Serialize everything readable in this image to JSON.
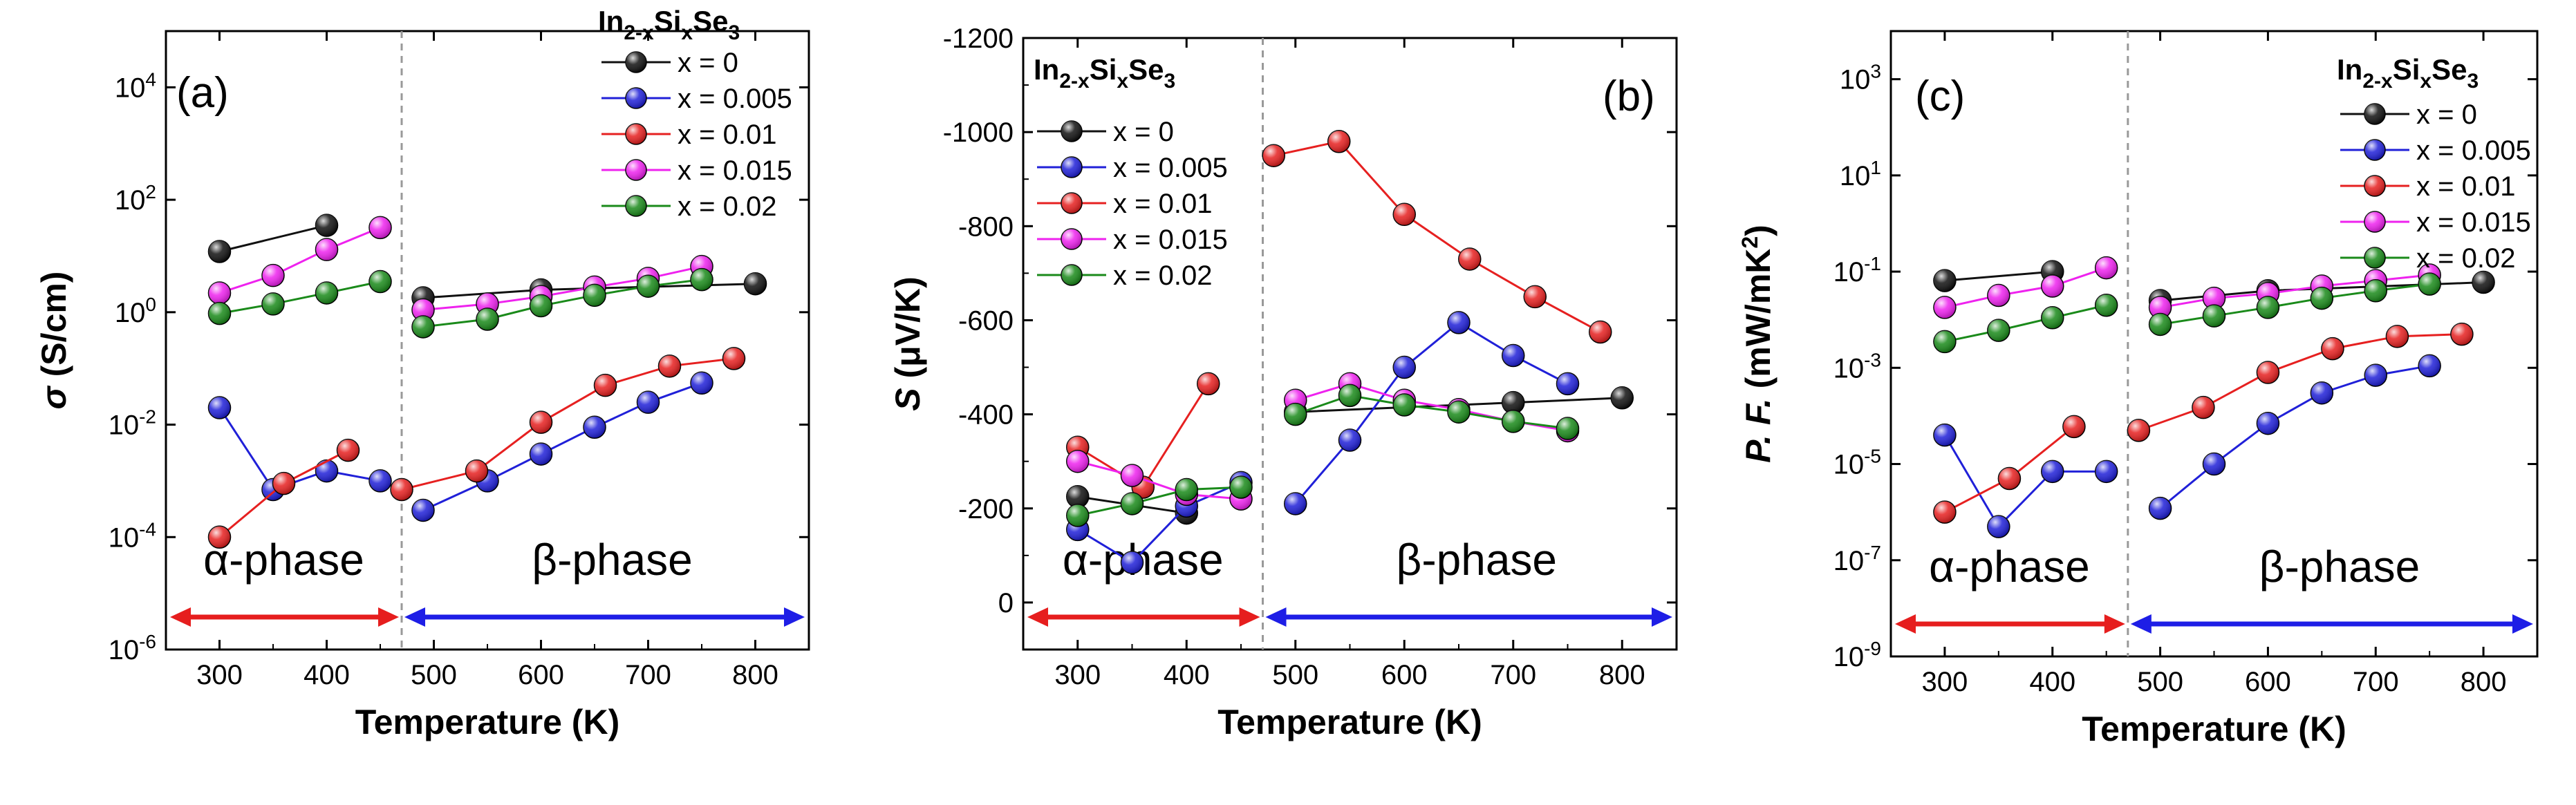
{
  "colors": {
    "x = 0": "#111111",
    "x = 0.005": "#2020d8",
    "x = 0.01": "#e62020",
    "x = 0.015": "#ee22ee",
    "x = 0.02": "#1a8a1a",
    "alpha_arrow": "#e61e1e",
    "beta_arrow": "#1e1ee6",
    "divider": "#999999"
  },
  "phase_labels": {
    "alpha": "α-phase",
    "beta": "β-phase"
  },
  "phase_boundary_K": 470,
  "legend_title": {
    "base": "In",
    "sub1": "2-x",
    "mid": "Si",
    "sub2": "x",
    "end": "Se",
    "sub3": "3"
  },
  "chart_data": [
    {
      "panel": "(a)",
      "type": "scatter",
      "scale": "log",
      "xlabel": "Temperature (K)",
      "ylabel": "σ (S/cm)",
      "xlim": [
        250,
        850
      ],
      "ylim": [
        1e-06,
        100000.0
      ],
      "xticks": [
        "300",
        "400",
        "500",
        "600",
        "700",
        "800"
      ],
      "yticks": [
        "10-6",
        "10-4",
        "10-2",
        "100",
        "102",
        "104"
      ],
      "legend_position": "top-right",
      "series": [
        {
          "name": "x = 0",
          "segments": [
            [
              [
                300,
                12
              ],
              [
                400,
                35
              ]
            ],
            [
              [
                490,
                1.8
              ],
              [
                600,
                2.5
              ],
              [
                800,
                3.2
              ]
            ]
          ]
        },
        {
          "name": "x = 0.005",
          "segments": [
            [
              [
                300,
                0.02
              ],
              [
                350,
                0.0007
              ],
              [
                400,
                0.0015
              ],
              [
                450,
                0.001
              ]
            ],
            [
              [
                490,
                0.0003
              ],
              [
                550,
                0.001
              ],
              [
                600,
                0.003
              ],
              [
                650,
                0.009
              ],
              [
                700,
                0.025
              ],
              [
                750,
                0.055
              ]
            ]
          ]
        },
        {
          "name": "x = 0.01",
          "segments": [
            [
              [
                300,
                0.0001
              ],
              [
                360,
                0.0009
              ],
              [
                420,
                0.0035
              ]
            ],
            [
              [
                470,
                0.0007
              ],
              [
                540,
                0.0015
              ],
              [
                600,
                0.011
              ],
              [
                660,
                0.05
              ],
              [
                720,
                0.11
              ],
              [
                780,
                0.15
              ]
            ]
          ]
        },
        {
          "name": "x = 0.015",
          "segments": [
            [
              [
                300,
                2.2
              ],
              [
                350,
                4.5
              ],
              [
                400,
                13
              ],
              [
                450,
                32
              ]
            ],
            [
              [
                490,
                1.1
              ],
              [
                550,
                1.4
              ],
              [
                600,
                1.9
              ],
              [
                650,
                2.8
              ],
              [
                700,
                4
              ],
              [
                750,
                6.5
              ]
            ]
          ]
        },
        {
          "name": "x = 0.02",
          "segments": [
            [
              [
                300,
                0.95
              ],
              [
                350,
                1.4
              ],
              [
                400,
                2.2
              ],
              [
                450,
                3.5
              ]
            ],
            [
              [
                490,
                0.55
              ],
              [
                550,
                0.75
              ],
              [
                600,
                1.3
              ],
              [
                650,
                2
              ],
              [
                700,
                2.9
              ],
              [
                750,
                3.8
              ]
            ]
          ]
        }
      ]
    },
    {
      "panel": "(b)",
      "type": "scatter",
      "scale": "linear",
      "xlabel": "Temperature (K)",
      "ylabel": "S (μV/K)",
      "xlim": [
        250,
        850
      ],
      "ylim": [
        100,
        -1200
      ],
      "xticks": [
        "300",
        "400",
        "500",
        "600",
        "700",
        "800"
      ],
      "yticks": [
        "0",
        "-200",
        "-400",
        "-600",
        "-800",
        "-1000",
        "-1200"
      ],
      "legend_position": "top-left",
      "series": [
        {
          "name": "x = 0",
          "segments": [
            [
              [
                300,
                -225
              ],
              [
                400,
                -190
              ]
            ],
            [
              [
                500,
                -405
              ],
              [
                700,
                -425
              ],
              [
                800,
                -435
              ]
            ]
          ]
        },
        {
          "name": "x = 0.005",
          "segments": [
            [
              [
                300,
                -155
              ],
              [
                350,
                -85
              ],
              [
                400,
                -205
              ],
              [
                450,
                -255
              ]
            ],
            [
              [
                500,
                -210
              ],
              [
                550,
                -345
              ],
              [
                600,
                -500
              ],
              [
                650,
                -595
              ],
              [
                700,
                -525
              ],
              [
                750,
                -465
              ]
            ]
          ]
        },
        {
          "name": "x = 0.01",
          "segments": [
            [
              [
                300,
                -330
              ],
              [
                360,
                -245
              ],
              [
                420,
                -465
              ]
            ],
            [
              [
                480,
                -950
              ],
              [
                540,
                -980
              ],
              [
                600,
                -825
              ],
              [
                660,
                -730
              ],
              [
                720,
                -650
              ],
              [
                780,
                -575
              ]
            ]
          ]
        },
        {
          "name": "x = 0.015",
          "segments": [
            [
              [
                300,
                -300
              ],
              [
                350,
                -270
              ],
              [
                400,
                -230
              ],
              [
                450,
                -220
              ]
            ],
            [
              [
                500,
                -430
              ],
              [
                550,
                -465
              ],
              [
                600,
                -430
              ],
              [
                650,
                -410
              ],
              [
                700,
                -385
              ],
              [
                750,
                -365
              ]
            ]
          ]
        },
        {
          "name": "x = 0.02",
          "segments": [
            [
              [
                300,
                -185
              ],
              [
                350,
                -210
              ],
              [
                400,
                -240
              ],
              [
                450,
                -245
              ]
            ],
            [
              [
                500,
                -400
              ],
              [
                550,
                -440
              ],
              [
                600,
                -420
              ],
              [
                650,
                -405
              ],
              [
                700,
                -385
              ],
              [
                750,
                -370
              ]
            ]
          ]
        }
      ]
    },
    {
      "panel": "(c)",
      "type": "scatter",
      "scale": "log",
      "xlabel": "Temperature (K)",
      "ylabel": "P. F. (mW/mK2)",
      "xlim": [
        250,
        850
      ],
      "ylim": [
        1e-09,
        10000.0
      ],
      "xticks": [
        "300",
        "400",
        "500",
        "600",
        "700",
        "800"
      ],
      "yticks": [
        "10-9",
        "10-7",
        "10-5",
        "10-3",
        "10-1",
        "101",
        "103"
      ],
      "legend_position": "top-right",
      "series": [
        {
          "name": "x = 0",
          "segments": [
            [
              [
                300,
                0.065
              ],
              [
                400,
                0.1
              ]
            ],
            [
              [
                500,
                0.025
              ],
              [
                600,
                0.04
              ],
              [
                800,
                0.06
              ]
            ]
          ]
        },
        {
          "name": "x = 0.005",
          "segments": [
            [
              [
                300,
                4e-05
              ],
              [
                350,
                5e-07
              ],
              [
                400,
                7e-06
              ],
              [
                450,
                7e-06
              ]
            ],
            [
              [
                500,
                1.2e-06
              ],
              [
                550,
                1e-05
              ],
              [
                600,
                7e-05
              ],
              [
                650,
                0.0003
              ],
              [
                700,
                0.0007
              ],
              [
                750,
                0.0011
              ]
            ]
          ]
        },
        {
          "name": "x = 0.01",
          "segments": [
            [
              [
                300,
                1e-06
              ],
              [
                360,
                5e-06
              ],
              [
                420,
                6e-05
              ]
            ],
            [
              [
                480,
                5e-05
              ],
              [
                540,
                0.00015
              ],
              [
                600,
                0.0008
              ],
              [
                660,
                0.0025
              ],
              [
                720,
                0.0045
              ],
              [
                780,
                0.005
              ]
            ]
          ]
        },
        {
          "name": "x = 0.015",
          "segments": [
            [
              [
                300,
                0.018
              ],
              [
                350,
                0.032
              ],
              [
                400,
                0.05
              ],
              [
                450,
                0.12
              ]
            ],
            [
              [
                500,
                0.018
              ],
              [
                550,
                0.028
              ],
              [
                600,
                0.035
              ],
              [
                650,
                0.05
              ],
              [
                700,
                0.065
              ],
              [
                750,
                0.085
              ]
            ]
          ]
        },
        {
          "name": "x = 0.02",
          "segments": [
            [
              [
                300,
                0.0035
              ],
              [
                350,
                0.006
              ],
              [
                400,
                0.011
              ],
              [
                450,
                0.02
              ]
            ],
            [
              [
                500,
                0.008
              ],
              [
                550,
                0.012
              ],
              [
                600,
                0.018
              ],
              [
                650,
                0.028
              ],
              [
                700,
                0.04
              ],
              [
                750,
                0.055
              ]
            ]
          ]
        }
      ]
    }
  ]
}
